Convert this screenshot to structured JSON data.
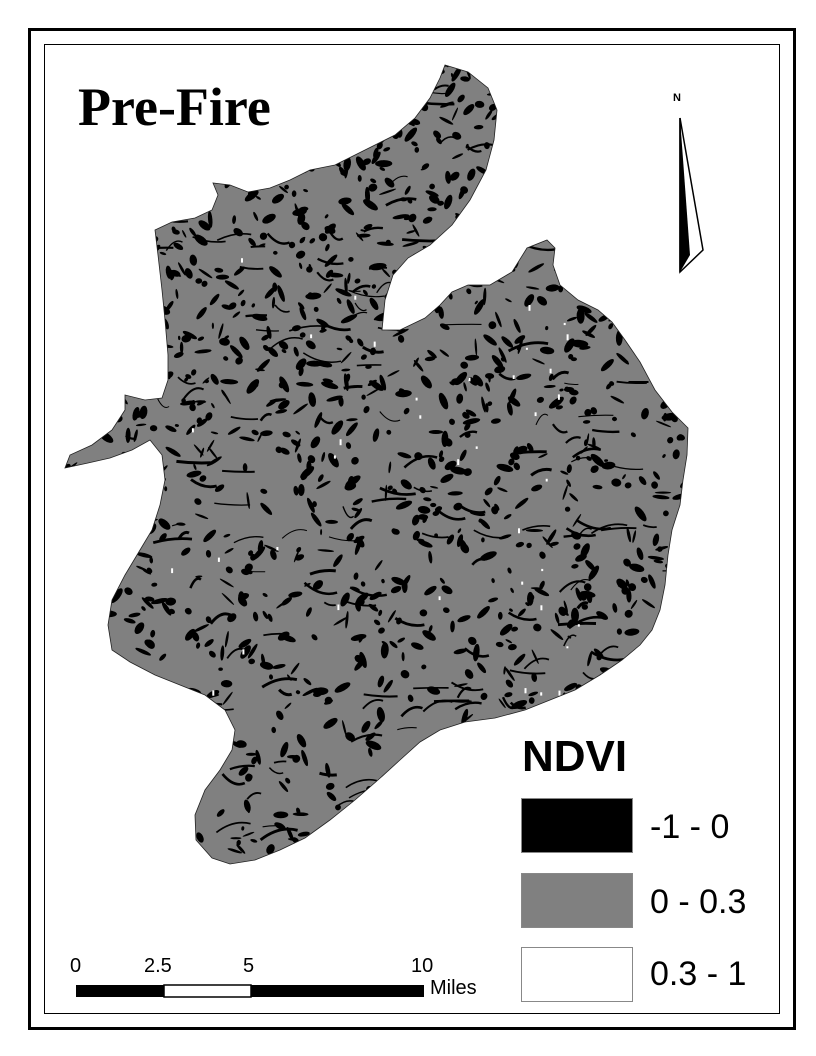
{
  "map": {
    "title": "Pre-Fire",
    "north_label": "N",
    "legend": {
      "title": "NDVI",
      "classes": [
        {
          "label": "-1 - 0",
          "color": "#000000"
        },
        {
          "label": "0 - 0.3",
          "color": "#808080"
        },
        {
          "label": "0.3 - 1",
          "color": "#ffffff"
        }
      ]
    },
    "scale_bar": {
      "ticks": [
        "0",
        "2.5",
        "5",
        "10"
      ],
      "unit": "Miles"
    },
    "colors": {
      "low": "#000000",
      "mid": "#808080",
      "high": "#ffffff"
    }
  }
}
